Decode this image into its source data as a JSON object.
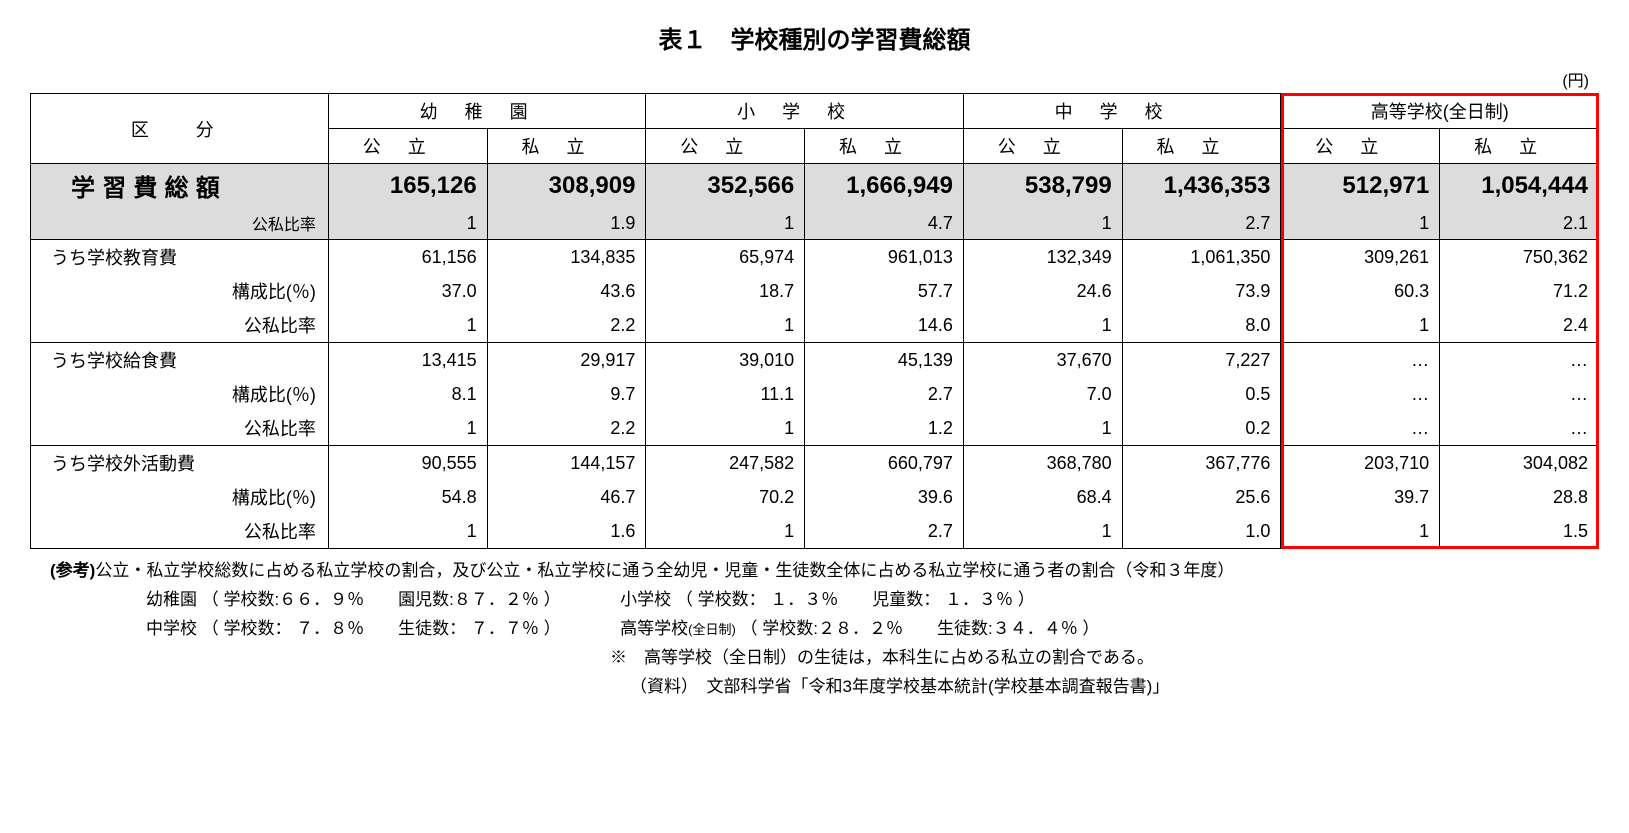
{
  "title": "表１　学校種別の学習費総額",
  "unit_label": "(円)",
  "headers": {
    "category": "区　分",
    "groups": [
      "幼稚園",
      "小学校",
      "中学校",
      "高等学校(全日制)"
    ],
    "sub": {
      "public": "公立",
      "private": "私立"
    }
  },
  "row_labels": {
    "total": "学習費総額",
    "ratio": "公私比率",
    "edu": "うち学校教育費",
    "meal": "うち学校給食費",
    "act": "うち学校外活動費",
    "comp": "構成比(％)"
  },
  "rows": {
    "total": [
      "165,126",
      "308,909",
      "352,566",
      "1,666,949",
      "538,799",
      "1,436,353",
      "512,971",
      "1,054,444"
    ],
    "total_ratio": [
      "1",
      "1.9",
      "1",
      "4.7",
      "1",
      "2.7",
      "1",
      "2.1"
    ],
    "edu": [
      "61,156",
      "134,835",
      "65,974",
      "961,013",
      "132,349",
      "1,061,350",
      "309,261",
      "750,362"
    ],
    "edu_comp": [
      "37.0",
      "43.6",
      "18.7",
      "57.7",
      "24.6",
      "73.9",
      "60.3",
      "71.2"
    ],
    "edu_ratio": [
      "1",
      "2.2",
      "1",
      "14.6",
      "1",
      "8.0",
      "1",
      "2.4"
    ],
    "meal": [
      "13,415",
      "29,917",
      "39,010",
      "45,139",
      "37,670",
      "7,227",
      "…",
      "…"
    ],
    "meal_comp": [
      "8.1",
      "9.7",
      "11.1",
      "2.7",
      "7.0",
      "0.5",
      "…",
      "…"
    ],
    "meal_ratio": [
      "1",
      "2.2",
      "1",
      "1.2",
      "1",
      "0.2",
      "…",
      "…"
    ],
    "act": [
      "90,555",
      "144,157",
      "247,582",
      "660,797",
      "368,780",
      "367,776",
      "203,710",
      "304,082"
    ],
    "act_comp": [
      "54.8",
      "46.7",
      "70.2",
      "39.6",
      "68.4",
      "25.6",
      "39.7",
      "28.8"
    ],
    "act_ratio": [
      "1",
      "1.6",
      "1",
      "2.7",
      "1",
      "1.0",
      "1",
      "1.5"
    ]
  },
  "notes": {
    "ref_label": "(参考)",
    "line1": "公立・私立学校総数に占める私立学校の割合，及び公立・私立学校に通う全幼児・児童・生徒数全体に占める私立学校に通う者の割合（令和３年度）",
    "line2a": "幼稚園 （ 学校数:６６．９％　　園児数:８７．２％ ）",
    "line2b": "小学校 （ 学校数： １．３％　　児童数： １．３％ ）",
    "line3a": "中学校 （ 学校数： ７．８％　　生徒数： ７．７％ ）",
    "line3b_pre": "高等学校",
    "line3b_small": "(全日制)",
    "line3b_post": " （ 学校数:２８．２％　　生徒数:３４．４％ ）",
    "line4": "※　高等学校（全日制）の生徒は，本科生に占める私立の割合である。",
    "line5": "（資料）　文部科学省「令和3年度学校基本統計(学校基本調査報告書)」"
  },
  "highlight": {
    "color": "#ff0000",
    "top_pct": 0,
    "left_pct": 79.75,
    "width_pct": 20.25,
    "height_pct": 100
  }
}
